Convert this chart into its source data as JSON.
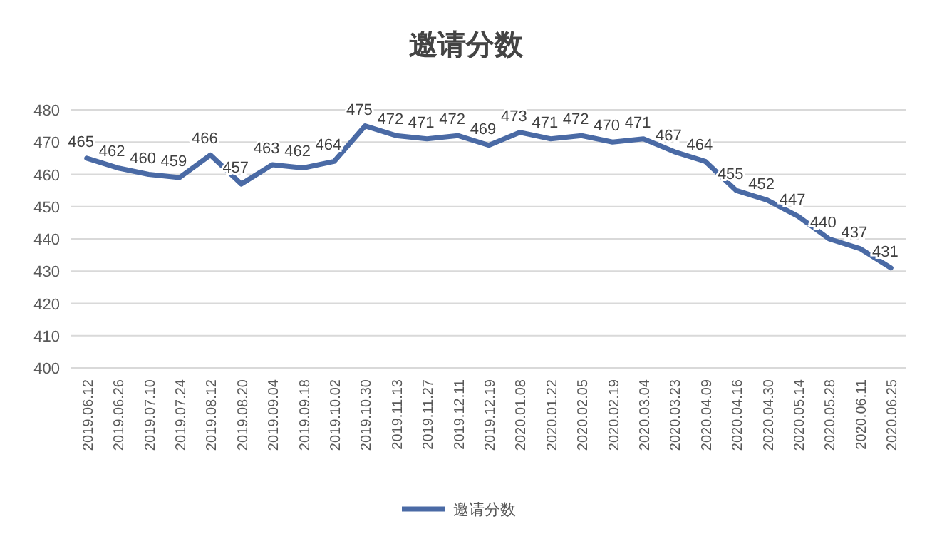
{
  "chart_data": {
    "type": "line",
    "title": "邀请分数",
    "categories": [
      "2019.06.12",
      "2019.06.26",
      "2019.07.10",
      "2019.07.24",
      "2019.08.12",
      "2019.08.20",
      "2019.09.04",
      "2019.09.18",
      "2019.10.02",
      "2019.10.30",
      "2019.11.13",
      "2019.11.27",
      "2019.12.11",
      "2019.12.19",
      "2020.01.08",
      "2020.01.22",
      "2020.02.05",
      "2020.02.19",
      "2020.03.04",
      "2020.03.23",
      "2020.04.09",
      "2020.04.16",
      "2020.04.30",
      "2020.05.14",
      "2020.05.28",
      "2020.06.11",
      "2020.06.25"
    ],
    "series": [
      {
        "name": "邀请分数",
        "color": "#4a6aa5",
        "values": [
          465,
          462,
          460,
          459,
          466,
          457,
          463,
          462,
          464,
          475,
          472,
          471,
          472,
          469,
          473,
          471,
          472,
          470,
          471,
          467,
          464,
          455,
          452,
          447,
          440,
          437,
          431
        ]
      }
    ],
    "ylim": [
      400,
      480
    ],
    "yticks": [
      400,
      410,
      420,
      430,
      440,
      450,
      460,
      470,
      480
    ],
    "grid": "y",
    "legend": "bottom",
    "data_labels": true,
    "line_style": "solid",
    "marker": "none"
  }
}
